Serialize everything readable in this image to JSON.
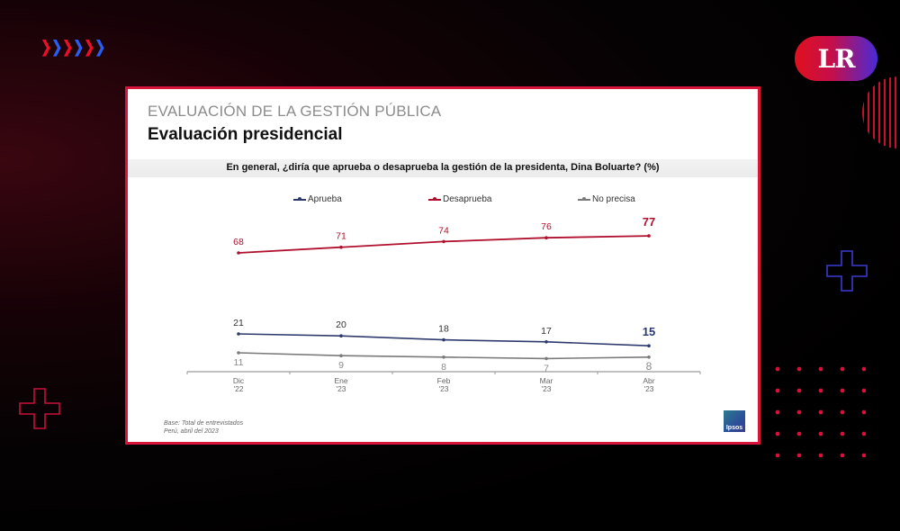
{
  "branding": {
    "logo_text": "LR",
    "logo_gradient": [
      "#e0101e",
      "#4a2ad8"
    ],
    "arrow_colors": [
      "#e8102a",
      "#2a5cf0",
      "#e8102a",
      "#2a5cf0",
      "#e8102a",
      "#2a5cf0"
    ]
  },
  "slide": {
    "subhead": "EVALUACIÓN DE LA GESTIÓN PÚBLICA",
    "title": "Evaluación presidencial",
    "question": "En general, ¿diría que aprueba o desaprueba la gestión de la presidenta, Dina Boluarte? (%)",
    "source_line1": "Base: Total de entrevistados",
    "source_line2": "Perú, abril del 2023",
    "pollster_logo": "Ipsos",
    "frame_color": "#d8143a"
  },
  "chart_data": {
    "type": "line",
    "title": "En general, ¿diría que aprueba o desaprueba la gestión de la presidenta, Dina Boluarte? (%)",
    "xlabel": "",
    "ylabel": "",
    "categories": [
      "Dic '22",
      "Ene '23",
      "Feb '23",
      "Mar '23",
      "Abr '23"
    ],
    "category_lines": [
      [
        "Dic",
        "'22"
      ],
      [
        "Ene",
        "'23"
      ],
      [
        "Feb",
        "'23"
      ],
      [
        "Mar",
        "'23"
      ],
      [
        "Abr",
        "'23"
      ]
    ],
    "series": [
      {
        "name": "Aprueba",
        "color": "#2e3a6e",
        "values": [
          21,
          20,
          18,
          17,
          15
        ]
      },
      {
        "name": "Desaprueba",
        "color": "#b0102e",
        "values": [
          68,
          71,
          74,
          76,
          77
        ]
      },
      {
        "name": "No precisa",
        "color": "#7a7a7a",
        "values": [
          11,
          9,
          8,
          7,
          8
        ]
      }
    ],
    "legend_position": "top",
    "grid": false,
    "data_labels": true,
    "last_point_emphasized": true
  }
}
